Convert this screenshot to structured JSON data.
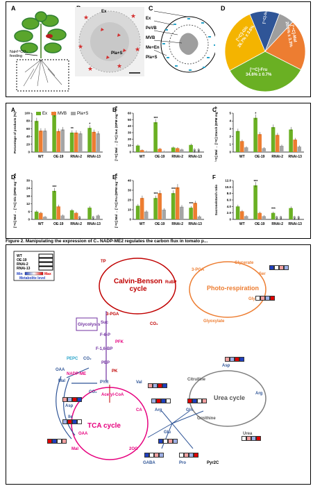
{
  "top": {
    "panel_A": {
      "label": "A",
      "feeding_text": "NaH¹⁴CO₃\nfeeding"
    },
    "panel_B": {
      "label": "B",
      "ex": "Ex",
      "pla_s": "Pla+S"
    },
    "panel_C": {
      "label": "C",
      "items": [
        "Ex",
        "PeVB",
        "MVB",
        "Me+En",
        "Pla+S"
      ]
    },
    "panel_D": {
      "label": "D",
      "slices": [
        {
          "name": "[¹⁴C]-Fru",
          "value": "34.6% ± 0.7%",
          "color": "#6ab023"
        },
        {
          "name": "[¹⁴C]-Glc",
          "value": "26.7% ± 3.6%",
          "color": "#f4b400"
        },
        {
          "name": "[¹⁴C]-Mal",
          "value": "20.5% ± 3.3%",
          "color": "#ed7d31"
        },
        {
          "name": "[¹⁴C]-Suc",
          "value": "",
          "color": "#2f5597"
        },
        {
          "name": "",
          "value": "",
          "color": "#9e9e9e"
        }
      ]
    }
  },
  "charts": {
    "legend": [
      {
        "name": "Ex",
        "color": "#6ab023"
      },
      {
        "name": "MVB",
        "color": "#ed7d31"
      },
      {
        "name": "Pla+S",
        "color": "#a5a5a5"
      }
    ],
    "categories": [
      "WT",
      "OE-19",
      "RNAi-2",
      "RNAi-13"
    ],
    "nd": "ND"
  },
  "chart_data": [
    {
      "type": "bar",
      "label": "A",
      "ylabel": "Percentage of products (%)",
      "ylim": [
        0,
        100
      ],
      "yticks": [
        "0",
        "20",
        "40",
        "60",
        "80",
        "100"
      ],
      "series": [
        {
          "name": "Ex",
          "values": [
            80,
            95,
            50,
            62
          ]
        },
        {
          "name": "MVB",
          "values": [
            55,
            54,
            50,
            52
          ]
        },
        {
          "name": "Pla+S",
          "values": [
            55,
            58,
            48,
            48
          ]
        }
      ],
      "sig": [
        "",
        "",
        "**",
        "*"
      ]
    },
    {
      "type": "bar",
      "label": "B",
      "ylabel": "[¹⁴C] Mal → [¹⁴C] Suc (DPM mg⁻¹ FW)",
      "ylim": [
        0,
        60
      ],
      "yticks": [
        "0",
        "10",
        "20",
        "30",
        "40",
        "50",
        "60"
      ],
      "series": [
        {
          "name": "Ex",
          "values": [
            10,
            46,
            7,
            11
          ]
        },
        {
          "name": "MVB",
          "values": [
            3,
            5,
            6,
            "ND"
          ]
        },
        {
          "name": "Pla+S",
          "values": [
            1,
            1,
            4,
            "ND"
          ]
        }
      ],
      "sig": [
        "",
        "***",
        "",
        ""
      ]
    },
    {
      "type": "bar",
      "label": "C",
      "ylabel": "[¹⁴C] Mal → [¹⁴C] Starch (DPM mg⁻¹ FW)",
      "ylim": [
        0,
        5
      ],
      "yticks": [
        "0",
        "1",
        "2",
        "3",
        "4",
        "5"
      ],
      "series": [
        {
          "name": "Ex",
          "values": [
            2.7,
            4.4,
            3.2,
            2.9
          ]
        },
        {
          "name": "MVB",
          "values": [
            1.4,
            2.3,
            2.2,
            1.6
          ]
        },
        {
          "name": "Pla+S",
          "values": [
            0.6,
            0.5,
            0.8,
            0.7
          ]
        }
      ],
      "sig": [
        "",
        "*",
        "",
        ""
      ]
    },
    {
      "type": "bar",
      "label": "D",
      "ylabel": "[¹⁴C] Mal → [¹⁴C] Glc (DPM mg⁻¹ FW)",
      "ylim": [
        0,
        30
      ],
      "yticks": [
        "0",
        "6",
        "12",
        "18",
        "24",
        "30"
      ],
      "series": [
        {
          "name": "Ex",
          "values": [
            6,
            22,
            7,
            9
          ]
        },
        {
          "name": "MVB",
          "values": [
            5,
            10,
            5,
            "ND"
          ]
        },
        {
          "name": "Pla+S",
          "values": [
            2,
            3,
            "ND",
            3
          ]
        }
      ],
      "sig": [
        "",
        "***",
        "",
        ""
      ]
    },
    {
      "type": "bar",
      "label": "E",
      "ylabel": "[¹⁴C] Mal → [¹⁴C] Fru (DPM mg⁻¹ FW)",
      "ylim": [
        0,
        40
      ],
      "yticks": [
        "0",
        "10",
        "20",
        "30",
        "40"
      ],
      "series": [
        {
          "name": "Ex",
          "values": [
            14,
            22,
            27,
            12
          ]
        },
        {
          "name": "MVB",
          "values": [
            22,
            27,
            33,
            17
          ]
        },
        {
          "name": "Pla+S",
          "values": [
            8,
            10,
            13,
            3
          ]
        }
      ],
      "sig": [
        "",
        "***",
        "***",
        "***"
      ]
    },
    {
      "type": "bar",
      "label": "F",
      "ylabel": "Sucrose/starch ratio",
      "ylim": [
        0,
        12
      ],
      "yticks": [
        "0",
        "2.0",
        "4.0",
        "6.0",
        "8.0",
        "10.0",
        "12.0"
      ],
      "series": [
        {
          "name": "Ex",
          "values": [
            4,
            10.5,
            2,
            3.5
          ]
        },
        {
          "name": "MVB",
          "values": [
            2.5,
            2,
            "ND",
            "ND"
          ]
        },
        {
          "name": "Pla+S",
          "values": [
            1,
            1,
            "ND",
            "ND"
          ]
        }
      ],
      "sig": [
        "",
        "***",
        "***",
        ""
      ]
    }
  ],
  "caption": "Figure 2. Manipulating the expression of C₄ NADP-ME2 regulates the carbon flux in tomato p...",
  "bottom": {
    "legend_rows": [
      "WT",
      "OE-19",
      "RNAi-2",
      "RNAi-13"
    ],
    "scale": {
      "min": "Min",
      "max": "Max",
      "label": "Metabolite level"
    },
    "calvin": "Calvin-Benson\ncycle",
    "photo": "Photo-respiration",
    "tca": "TCA cycle",
    "urea": "Urea cycle",
    "glycolysis": "Glycolysis",
    "nodes": {
      "tp": "TP",
      "rubp": "RuBP",
      "pga1": "3-PGA",
      "pga2": "3-PGA",
      "co2a": "CO₂",
      "glycerate": "Glycerate",
      "ser": "Ser",
      "gly": "Gly",
      "glyoxylate": "Glyoxylate",
      "suc": "Suc",
      "f6p": "F-6-P",
      "pfk": "PFK",
      "f16bp": "F-1,6-BP",
      "pepc": "PEPC",
      "co2b": "CO₂",
      "pep": "PEP",
      "pk": "PK",
      "oaa": "OAA",
      "mal": "Mal",
      "nadpme": "NADP-ME",
      "pyr": "PYR",
      "val": "Val",
      "co2c": "CO₂",
      "acetyl": "Acetyl-CoA",
      "asp": "Asp",
      "ile": "Ile",
      "oaa2": "OAA",
      "mal2": "Mal",
      "ca": "CA",
      "og": "2OG",
      "glu": "Glu",
      "arg": "Arg",
      "gln": "Gln",
      "gaba": "GABA",
      "pro": "Pro",
      "pyr2c": "Pyr2C",
      "citrulline": "Citrulline",
      "ornithine": "Ornithine",
      "urea": "Urea",
      "asp2": "Asp",
      "arg2": "Arg"
    }
  }
}
